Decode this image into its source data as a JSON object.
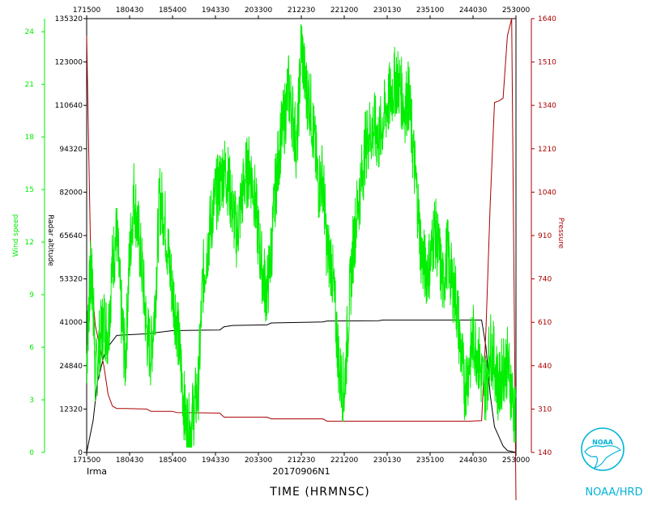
{
  "colors": {
    "wind": "#00ee00",
    "pressure": "#aa0000",
    "altitude": "#000000",
    "logo": "#00b4d8"
  },
  "labels": {
    "storm": "Irma",
    "flight_id": "20170906N1",
    "x_title": "TIME (HRMNSC)",
    "logo": "NOAA/HRD",
    "logo_badge": "NOAA"
  },
  "chart_data": {
    "type": "line",
    "x_ticks": [
      "171500",
      "180430",
      "185400",
      "194330",
      "203300",
      "212230",
      "221200",
      "230130",
      "235100",
      "244030",
      "253000"
    ],
    "x_range": [
      "171500",
      "253000"
    ],
    "axes": {
      "wind": {
        "label": "Wind speed",
        "range": [
          0,
          24.75
        ],
        "ticks": [
          "0",
          "3",
          "6",
          "9",
          "12",
          "15",
          "18",
          "21",
          "24"
        ]
      },
      "altitude": {
        "label": "Radar altitude",
        "range": [
          0,
          135320
        ],
        "ticks": [
          "0",
          "12320",
          "24840",
          "41000",
          "53320",
          "65640",
          "82000",
          "94320",
          "110640",
          "123000",
          "135320"
        ]
      },
      "pressure": {
        "label": "Pressure",
        "range": [
          140,
          1640
        ],
        "ticks": [
          "140",
          "310",
          "440",
          "610",
          "740",
          "910",
          "1040",
          "1210",
          "1340",
          "1510",
          "1640"
        ]
      }
    },
    "series": [
      {
        "name": "Wind speed",
        "axis": "wind",
        "x": [
          0,
          0.005,
          0.01,
          0.015,
          0.02,
          0.03,
          0.04,
          0.05,
          0.06,
          0.07,
          0.08,
          0.09,
          0.1,
          0.11,
          0.12,
          0.13,
          0.14,
          0.15,
          0.16,
          0.17,
          0.18,
          0.19,
          0.2,
          0.21,
          0.22,
          0.23,
          0.24,
          0.25,
          0.26,
          0.27,
          0.28,
          0.29,
          0.3,
          0.31,
          0.32,
          0.33,
          0.34,
          0.35,
          0.36,
          0.37,
          0.38,
          0.39,
          0.4,
          0.41,
          0.42,
          0.43,
          0.44,
          0.45,
          0.46,
          0.47,
          0.48,
          0.49,
          0.5,
          0.51,
          0.52,
          0.53,
          0.54,
          0.55,
          0.56,
          0.57,
          0.58,
          0.59,
          0.6,
          0.61,
          0.62,
          0.63,
          0.64,
          0.65,
          0.66,
          0.67,
          0.68,
          0.69,
          0.7,
          0.71,
          0.72,
          0.73,
          0.74,
          0.75,
          0.76,
          0.77,
          0.78,
          0.79,
          0.8,
          0.81,
          0.82,
          0.83,
          0.84,
          0.85,
          0.86,
          0.87,
          0.88,
          0.89,
          0.9,
          0.91,
          0.92,
          0.93,
          0.94,
          0.95,
          0.96,
          0.97,
          0.98,
          0.99,
          1
        ],
        "y": [
          5.2,
          8.5,
          10.3,
          9.1,
          4.2,
          6.3,
          7.5,
          6.8,
          10.8,
          12.5,
          8.2,
          5.1,
          11.2,
          14.8,
          12.6,
          10.2,
          6.8,
          5.6,
          8.8,
          14.5,
          13.7,
          11.3,
          9.2,
          7.5,
          4.8,
          1.8,
          1.2,
          2.5,
          3.6,
          9.7,
          11.5,
          13.2,
          14.6,
          15.3,
          16.2,
          15.5,
          13.8,
          12.4,
          14.3,
          15.8,
          16.2,
          14.9,
          12.3,
          10.2,
          9.1,
          11.5,
          15.1,
          17.6,
          18.9,
          20.8,
          19.2,
          17.3,
          23.5,
          20.7,
          20.1,
          17.8,
          15.2,
          15.8,
          11.4,
          10.9,
          7.6,
          4.3,
          3.5,
          7.8,
          11.5,
          13.8,
          15.5,
          17.6,
          18.3,
          18.5,
          17.8,
          18.9,
          19.8,
          20.5,
          21.3,
          20.9,
          19.6,
          20.4,
          17.3,
          14.5,
          11.2,
          10.4,
          10.8,
          12.8,
          11.5,
          9.5,
          11.5,
          9.8,
          8.9,
          6.2,
          3.8,
          4.8,
          6.5,
          5.8,
          4.3,
          3.7,
          6.1,
          5.2,
          3.5,
          4.9,
          5.1,
          3.5,
          1.5
        ]
      },
      {
        "name": "Radar altitude",
        "axis": "altitude",
        "x": [
          0,
          0.015,
          0.025,
          0.04,
          0.05,
          0.07,
          0.14,
          0.2,
          0.31,
          0.32,
          0.34,
          0.42,
          0.43,
          0.55,
          0.56,
          0.68,
          0.69,
          0.85,
          0.92,
          0.93,
          0.94,
          0.95,
          0.97,
          0.98,
          1
        ],
        "y": [
          0,
          10000,
          22000,
          30000,
          33000,
          36500,
          37000,
          38000,
          38200,
          39200,
          39600,
          39800,
          40400,
          40700,
          41000,
          41100,
          41300,
          41300,
          41300,
          33000,
          18000,
          8000,
          2000,
          600,
          0
        ]
      },
      {
        "name": "Pressure",
        "axis": "pressure",
        "x": [
          0,
          0.005,
          0.01,
          0.02,
          0.04,
          0.05,
          0.06,
          0.07,
          0.09,
          0.14,
          0.15,
          0.2,
          0.21,
          0.31,
          0.32,
          0.42,
          0.43,
          0.55,
          0.56,
          0.89,
          0.92,
          0.93,
          0.94,
          0.95,
          0.96,
          0.97,
          0.98,
          0.99,
          1
        ],
        "y": [
          1580,
          1160,
          760,
          580,
          440,
          340,
          300,
          292,
          292,
          290,
          282,
          282,
          278,
          276,
          262,
          262,
          256,
          256,
          248,
          248,
          250,
          560,
          1000,
          1350,
          1355,
          1365,
          1580,
          1640,
          1640
        ]
      }
    ]
  }
}
